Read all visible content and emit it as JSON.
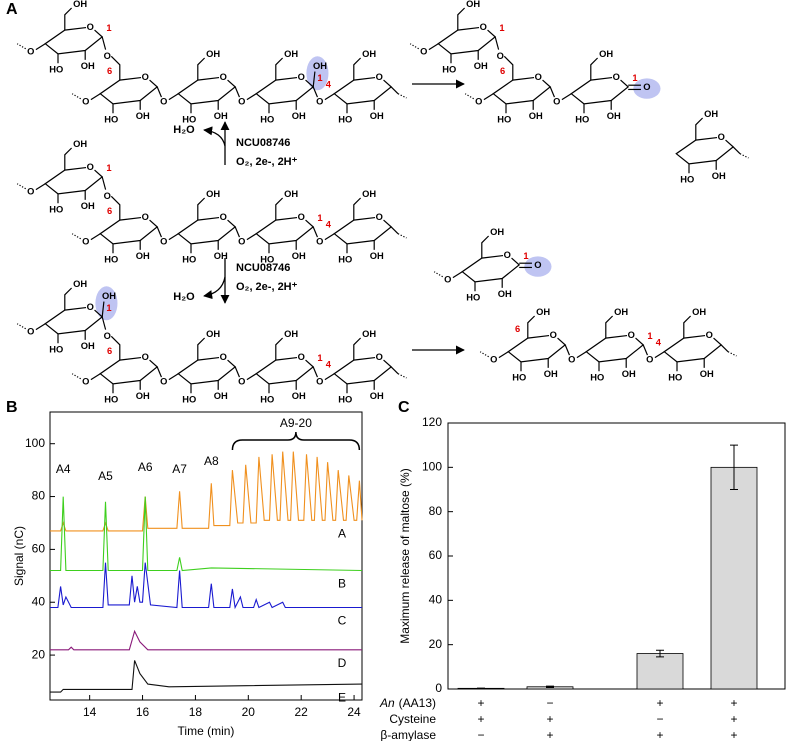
{
  "scheme": {
    "panel": "A",
    "hydroxyl": "OH",
    "hydroxyl_left": "HO",
    "oxygen": "O",
    "carbon_1": "1",
    "carbon_4": "4",
    "carbon_6": "6",
    "upper_reaction": {
      "water": "H₂O",
      "enzyme": "NCU08746",
      "conditions": "O₂, 2e-, 2H⁺"
    },
    "lower_reaction": {
      "water": "H₂O",
      "enzyme": "NCU08746",
      "conditions": "O₂, 2e-, 2H⁺"
    }
  },
  "chart_data": [
    {
      "type": "line",
      "panel": "B",
      "xlabel": "Time (min)",
      "ylabel": "Signal (nC)",
      "xlim": [
        12.5,
        24.3
      ],
      "ylim": [
        3,
        112
      ],
      "xticks": [
        14,
        16,
        18,
        20,
        22,
        24
      ],
      "yticks": [
        20,
        40,
        60,
        80,
        100
      ],
      "peak_labels": [
        {
          "text": "A4",
          "x": 13.0
        },
        {
          "text": "A5",
          "x": 14.6
        },
        {
          "text": "A6",
          "x": 16.1
        },
        {
          "text": "A7",
          "x": 17.4
        },
        {
          "text": "A8",
          "x": 18.6
        }
      ],
      "bracket": {
        "text": "A9-20",
        "x": [
          19.4,
          24.2
        ]
      },
      "series": [
        {
          "name": "A",
          "color": "#f0901e",
          "x": [
            12.5,
            12.9,
            13.0,
            13.1,
            14.5,
            14.6,
            14.7,
            16.0,
            16.1,
            16.2,
            17.3,
            17.4,
            17.5,
            18.5,
            18.6,
            18.7,
            19.3,
            19.4,
            19.6,
            19.8,
            19.9,
            20.1,
            20.3,
            20.4,
            20.6,
            20.8,
            20.9,
            21.1,
            21.2,
            21.3,
            21.5,
            21.6,
            21.7,
            21.9,
            22.1,
            22.2,
            22.4,
            22.5,
            22.6,
            22.8,
            22.9,
            23.0,
            23.2,
            23.3,
            23.4,
            23.6,
            23.7,
            23.8,
            24.0,
            24.1,
            24.2,
            24.3
          ],
          "values": [
            67,
            67,
            70,
            67,
            67,
            70,
            67,
            67,
            80,
            68,
            68,
            82,
            68,
            68,
            85,
            69,
            69,
            90,
            70,
            70,
            92,
            70,
            70,
            95,
            71,
            71,
            96,
            71,
            71,
            97,
            71,
            71,
            97,
            71,
            71,
            96,
            71,
            71,
            95,
            71,
            71,
            93,
            71,
            71,
            90,
            71,
            71,
            88,
            71,
            71,
            86,
            71
          ]
        },
        {
          "name": "B",
          "color": "#3ecf1e",
          "x": [
            12.5,
            12.9,
            13.0,
            13.1,
            14.5,
            14.6,
            14.7,
            16.0,
            16.1,
            16.2,
            17.3,
            17.4,
            17.5,
            18.6,
            24.3
          ],
          "values": [
            52,
            52,
            80,
            52,
            52,
            78,
            52,
            52,
            80,
            52,
            52,
            57,
            52,
            53,
            52
          ]
        },
        {
          "name": "C",
          "color": "#1a1ad0",
          "x": [
            12.5,
            12.8,
            12.9,
            13.0,
            13.1,
            13.3,
            14.5,
            14.6,
            14.7,
            15.5,
            15.6,
            15.7,
            15.8,
            15.9,
            16.0,
            16.1,
            16.3,
            17.3,
            17.4,
            17.5,
            18.5,
            18.6,
            18.7,
            19.3,
            19.4,
            19.5,
            19.7,
            19.8,
            20.2,
            20.3,
            20.4,
            20.8,
            20.9,
            21.3,
            21.4,
            24.3
          ],
          "values": [
            38,
            38,
            46,
            39,
            42,
            38,
            38,
            55,
            39,
            39,
            50,
            40,
            46,
            40,
            40,
            55,
            39,
            38,
            52,
            38,
            38,
            47,
            38,
            38,
            45,
            38,
            42,
            38,
            38,
            41,
            38,
            40,
            38,
            40,
            38,
            38
          ]
        },
        {
          "name": "D",
          "color": "#8a1a7a",
          "x": [
            12.5,
            13.2,
            13.3,
            13.4,
            15.5,
            15.7,
            15.9,
            16.2,
            24.3
          ],
          "values": [
            22,
            22,
            23,
            22,
            22,
            29,
            25,
            22,
            22
          ]
        },
        {
          "name": "E",
          "color": "#111111",
          "x": [
            12.5,
            12.9,
            13.0,
            13.1,
            15.6,
            15.7,
            15.9,
            16.2,
            17,
            24.3
          ],
          "values": [
            6,
            6,
            7,
            7,
            7,
            18,
            13,
            9,
            8,
            9
          ]
        }
      ]
    },
    {
      "type": "bar",
      "panel": "C",
      "ylabel": "Maximum release of maltose (%)",
      "values": [
        0.3,
        1,
        16,
        100
      ],
      "errors": [
        0.1,
        0.3,
        1.5,
        10
      ],
      "color": "#d9d9d9",
      "ylim": [
        0,
        120
      ],
      "yticks": [
        0,
        20,
        40,
        60,
        80,
        100,
        120
      ],
      "conditions": [
        {
          "label_prefix": "An",
          "label": "(AA13)",
          "signs": [
            "+",
            "−",
            "+",
            "+"
          ]
        },
        {
          "label": "Cysteine",
          "signs": [
            "+",
            "+",
            "−",
            "+"
          ]
        },
        {
          "label": "β-amylase",
          "signs": [
            "−",
            "+",
            "+",
            "+"
          ]
        }
      ]
    }
  ]
}
